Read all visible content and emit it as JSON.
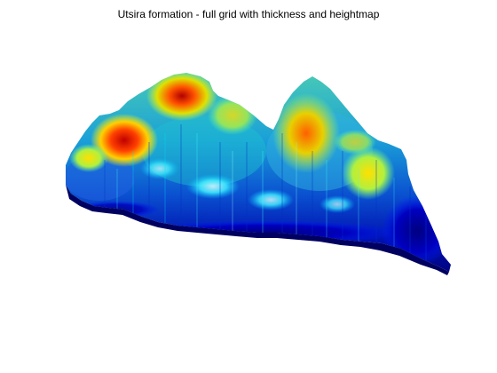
{
  "figure": {
    "title": "Utsira formation - full grid with thickness and heightmap",
    "background": "#ffffff",
    "colormap": [
      "#00008f",
      "#0000ff",
      "#0080ff",
      "#00ffff",
      "#80ff80",
      "#ffff00",
      "#ff8000",
      "#ff0000",
      "#800000"
    ]
  }
}
